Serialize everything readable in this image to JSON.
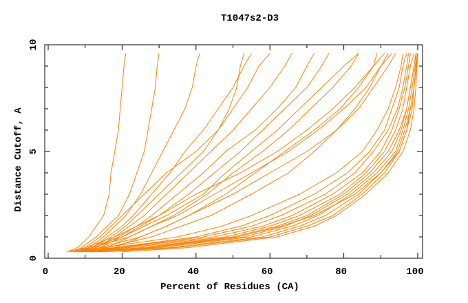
{
  "chart_data": {
    "type": "line",
    "title": "T1047s2-D3",
    "xlabel": "Percent of Residues (CA)",
    "ylabel": "Distance Cutoff, A",
    "xlim": [
      0,
      100
    ],
    "ylim": [
      0,
      10
    ],
    "xticks": [
      "0",
      "20",
      "40",
      "60",
      "80",
      "100"
    ],
    "yticks": [
      "0",
      "5",
      "10"
    ],
    "grid": false,
    "line_color": "#ff8000",
    "y_levels": [
      0.3,
      0.5,
      1,
      1.5,
      2,
      3,
      4,
      5,
      6,
      7,
      8,
      9,
      9.6
    ],
    "series": [
      {
        "x": [
          10,
          25,
          50,
          62,
          70,
          80,
          87,
          92,
          95,
          97,
          98,
          99,
          99.5
        ]
      },
      {
        "x": [
          12,
          30,
          55,
          66,
          73,
          82,
          89,
          94,
          96,
          97.5,
          98.5,
          99.3,
          100
        ]
      },
      {
        "x": [
          8,
          20,
          45,
          58,
          66,
          77,
          85,
          90,
          93,
          95,
          96.5,
          97.5,
          98
        ]
      },
      {
        "x": [
          15,
          35,
          60,
          70,
          77,
          85,
          91,
          95,
          97,
          98,
          99,
          99.6,
          100
        ]
      },
      {
        "x": [
          7,
          18,
          40,
          52,
          60,
          72,
          81,
          87,
          91,
          93,
          95,
          96,
          97
        ]
      },
      {
        "x": [
          20,
          38,
          62,
          72,
          78,
          86,
          92,
          96,
          98,
          99,
          99.5,
          99.8,
          100
        ]
      },
      {
        "x": [
          9,
          22,
          48,
          60,
          68,
          79,
          86,
          91,
          94,
          96,
          97,
          98,
          99
        ]
      },
      {
        "x": [
          6,
          15,
          35,
          47,
          55,
          68,
          78,
          85,
          89,
          92,
          94,
          95.5,
          96
        ]
      },
      {
        "x": [
          11,
          28,
          53,
          64,
          71,
          81,
          88,
          93,
          95.5,
          97,
          98,
          99,
          99.7
        ]
      },
      {
        "x": [
          14,
          33,
          58,
          68,
          75,
          84,
          90,
          94.5,
          96.5,
          98,
          99,
          99.5,
          100
        ]
      },
      {
        "x": [
          8,
          19,
          42,
          55,
          63,
          75,
          83,
          88,
          92,
          94.5,
          96,
          97,
          97.5
        ]
      },
      {
        "x": [
          13,
          27,
          51,
          63,
          72,
          83,
          90,
          95,
          97,
          98.5,
          99,
          99.6,
          100
        ]
      },
      {
        "x": [
          5,
          10,
          18,
          24,
          30,
          40,
          52,
          62,
          70,
          77,
          83,
          88,
          91
        ]
      },
      {
        "x": [
          7,
          12,
          22,
          28,
          35,
          45,
          55,
          65,
          73,
          80,
          86,
          90,
          93
        ]
      },
      {
        "x": [
          9,
          14,
          25,
          32,
          38,
          50,
          60,
          70,
          78,
          84,
          88,
          92,
          94
        ]
      },
      {
        "x": [
          6,
          11,
          20,
          26,
          32,
          42,
          48,
          55,
          62,
          68,
          74,
          80,
          84
        ]
      },
      {
        "x": [
          10,
          16,
          28,
          36,
          44,
          55,
          65,
          72,
          78,
          83,
          87,
          90,
          92
        ]
      },
      {
        "x": [
          5,
          8,
          11,
          13,
          15,
          16.5,
          17,
          18,
          19,
          19.5,
          20,
          20.5,
          21
        ]
      },
      {
        "x": [
          7,
          9,
          13,
          16,
          19,
          22,
          24,
          26,
          27,
          28,
          29,
          29.5,
          30
        ]
      },
      {
        "x": [
          8,
          11,
          15,
          18,
          21,
          25,
          28,
          31,
          34,
          37,
          39,
          40,
          41
        ]
      },
      {
        "x": [
          8,
          12,
          16,
          20,
          23,
          28,
          33,
          37,
          42,
          46,
          50,
          53,
          55
        ]
      },
      {
        "x": [
          9,
          13,
          18,
          22,
          26,
          32,
          38,
          44,
          50,
          55,
          60,
          64,
          66
        ]
      },
      {
        "x": [
          10,
          14,
          20,
          25,
          30,
          38,
          45,
          52,
          58,
          64,
          70,
          74,
          76
        ]
      },
      {
        "x": [
          11,
          16,
          22,
          28,
          34,
          43,
          50,
          58,
          65,
          71,
          77,
          82,
          84
        ]
      },
      {
        "x": [
          12,
          18,
          25,
          32,
          38,
          48,
          56,
          64,
          72,
          79,
          84,
          88,
          89
        ]
      },
      {
        "x": [
          7,
          10,
          14,
          17,
          20,
          26,
          32,
          40,
          46,
          50,
          54,
          57,
          60
        ]
      },
      {
        "x": [
          9,
          12,
          17,
          21,
          24,
          30,
          36,
          42,
          46,
          49,
          51,
          52,
          53
        ]
      },
      {
        "x": [
          10,
          13,
          19,
          24,
          28,
          35,
          42,
          48,
          56,
          62,
          67,
          70,
          72
        ]
      }
    ]
  }
}
